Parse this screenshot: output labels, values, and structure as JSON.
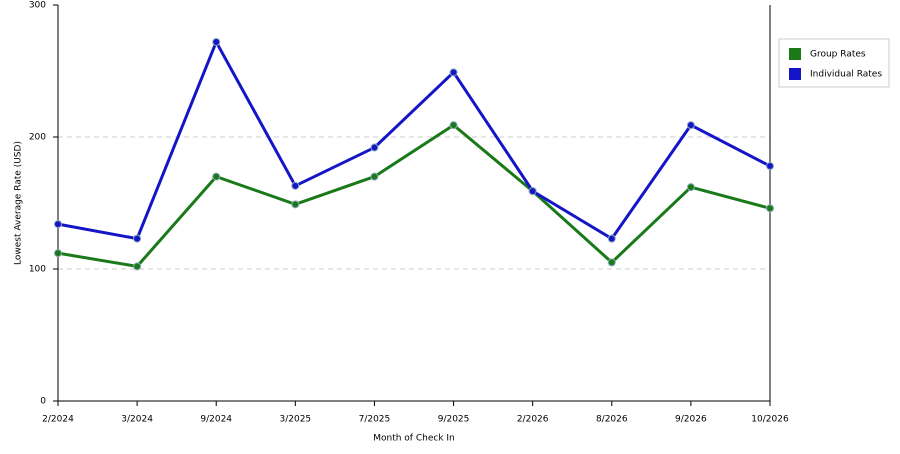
{
  "chart_data": {
    "type": "line",
    "x_label": "Month of Check In",
    "y_label": "Lowest Average Rate (USD)",
    "categories": [
      "2/2024",
      "3/2024",
      "9/2024",
      "3/2025",
      "7/2025",
      "9/2025",
      "2/2026",
      "8/2026",
      "9/2026",
      "10/2026"
    ],
    "series": [
      {
        "name": "Group Rates",
        "color": "#1a7a1a",
        "values": [
          112,
          102,
          170,
          149,
          170,
          209,
          159,
          105,
          162,
          146
        ]
      },
      {
        "name": "Individual Rates",
        "color": "#1515c8",
        "values": [
          134,
          123,
          272,
          163,
          192,
          249,
          159,
          123,
          209,
          178
        ]
      }
    ],
    "ylim": [
      0,
      300
    ],
    "yticks": [
      0,
      100,
      200,
      300
    ],
    "grid": true,
    "legend": "right"
  }
}
